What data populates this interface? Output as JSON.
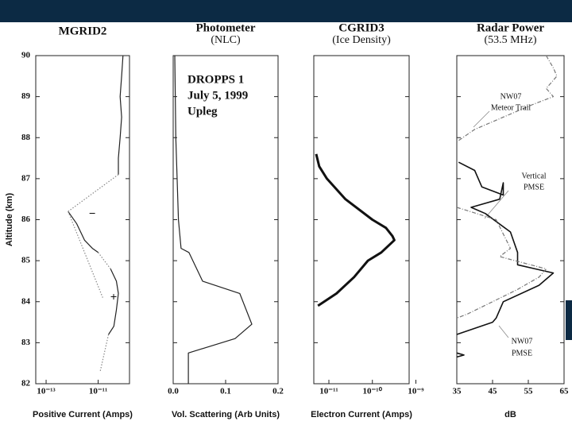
{
  "chart_data": [
    {
      "type": "line",
      "title": "MGRID2",
      "xlabel": "Positive Current (Amps)",
      "ylabel": "Altitude (km)",
      "xscale": "log",
      "xlim": [
        4e-14,
        1.6e-10
      ],
      "xticks": [
        {
          "value": 1e-13,
          "label": "10⁻¹³"
        },
        {
          "value": 1e-11,
          "label": "10⁻¹¹"
        }
      ],
      "ylim": [
        82,
        90
      ],
      "yticks": [
        82,
        83,
        84,
        85,
        86,
        87,
        88,
        89,
        90
      ],
      "series": [
        {
          "style": "solid",
          "color": "#222",
          "y": [
            90,
            89.5,
            89,
            88.5,
            88,
            87.5,
            87.1,
            null,
            86.2,
            85.9,
            85.5,
            85.3,
            85.2,
            null,
            84.8,
            84.5,
            84.2,
            83.8,
            83.4,
            83.2
          ],
          "x": [
            9e-11,
            8e-11,
            7e-11,
            8e-11,
            7e-11,
            6e-11,
            6e-11,
            null,
            7e-13,
            1.5e-12,
            3e-12,
            6e-12,
            1e-11,
            null,
            3e-11,
            5e-11,
            6e-11,
            5e-11,
            4e-11,
            2.5e-11
          ]
        },
        {
          "style": "dotted",
          "color": "#888",
          "y": [
            87.1,
            86.2,
            null,
            85.2,
            84.8,
            null,
            83.2,
            82.3,
            null,
            86.2,
            84.1
          ],
          "x": [
            6e-11,
            7e-13,
            null,
            1e-11,
            3e-11,
            null,
            2.5e-11,
            1.2e-11,
            null,
            7e-13,
            1.5e-11
          ]
        }
      ],
      "annotations": [
        "−",
        "+"
      ]
    },
    {
      "type": "line",
      "title": "Photometer",
      "subtitle": "(NLC)",
      "xlabel": "Vol. Scattering (Arb Units)",
      "xscale": "linear",
      "xlim": [
        0,
        0.2
      ],
      "xticks": [
        {
          "value": 0,
          "label": "0.0"
        },
        0.1,
        0.2
      ],
      "ylim": [
        82,
        90
      ],
      "series": [
        {
          "style": "solid",
          "color": "#222",
          "y": [
            90,
            88,
            86,
            85.3,
            85.2,
            84.5,
            84.2,
            83.45,
            83.1,
            82.75,
            82
          ],
          "x": [
            0.003,
            0.005,
            0.01,
            0.015,
            0.03,
            0.056,
            0.127,
            0.15,
            0.118,
            0.029,
            0.029
          ]
        }
      ],
      "annotations": [
        "DROPPS 1",
        "July 5, 1999",
        "Upleg"
      ]
    },
    {
      "type": "line",
      "title": "CGRID3",
      "subtitle": "(Ice Density)",
      "xlabel": "Electron Current (Amps)",
      "xscale": "log",
      "xlim": [
        4.5e-12,
        7e-10
      ],
      "xticks": [
        {
          "value": 1e-11,
          "label": "10⁻¹¹"
        },
        {
          "value": 1e-10,
          "label": "10⁻¹⁰"
        },
        {
          "value": 1e-09,
          "label": "10⁻⁹"
        }
      ],
      "ylim": [
        82,
        90
      ],
      "series": [
        {
          "style": "thick",
          "color": "#111",
          "y": [
            87.6,
            87.3,
            87,
            86.5,
            86,
            85.8,
            85.6,
            85.5,
            85.2,
            85,
            84.6,
            84.2,
            83.9
          ],
          "x": [
            5.1e-12,
            6e-12,
            9e-12,
            2.4e-11,
            1e-10,
            2.05e-10,
            2.9e-10,
            3.2e-10,
            1.6e-10,
            7.9e-11,
            3.8e-11,
            1.5e-11,
            5.6e-12
          ]
        }
      ]
    },
    {
      "type": "line",
      "title": "Radar Power",
      "subtitle": "(53.5 MHz)",
      "xlabel": "dB",
      "xscale": "linear",
      "xlim": [
        35,
        65
      ],
      "xticks": [
        35,
        45,
        55,
        65
      ],
      "ylim": [
        82,
        90
      ],
      "series": [
        {
          "style": "solid",
          "color": "#111",
          "y": [
            87.4,
            87.2,
            86.8,
            86.6,
            86.9,
            86.5,
            86.3,
            86.15,
            85.7,
            85.2,
            84.9,
            84.8,
            84.7,
            84.4,
            84,
            83.6,
            83.5,
            83.2,
            null,
            82.75,
            82.7,
            82.65
          ],
          "x": [
            35.5,
            40,
            42,
            48,
            48,
            47,
            39,
            43,
            50,
            52,
            52,
            57,
            62,
            58,
            48,
            46,
            45,
            35,
            null,
            35,
            37,
            35
          ]
        },
        {
          "style": "dashdot",
          "color": "#777",
          "y": [
            90,
            89.7,
            89.5,
            89.2,
            89,
            88.8,
            88.2,
            87.9
          ],
          "x": [
            60,
            62,
            63,
            60,
            62,
            56,
            40,
            35
          ]
        },
        {
          "style": "dashdot",
          "color": "#777",
          "y": [
            86.3,
            86,
            85.3,
            85.1,
            84.8,
            84.6,
            84.3,
            84,
            83.7,
            83.6
          ],
          "x": [
            35,
            46,
            50,
            47,
            60,
            58,
            52,
            45,
            38,
            35
          ]
        }
      ],
      "annotations": [
        "NW07",
        "Meteor Trail",
        "Vertical",
        "PMSE",
        "NW07",
        "PMSE"
      ]
    }
  ]
}
